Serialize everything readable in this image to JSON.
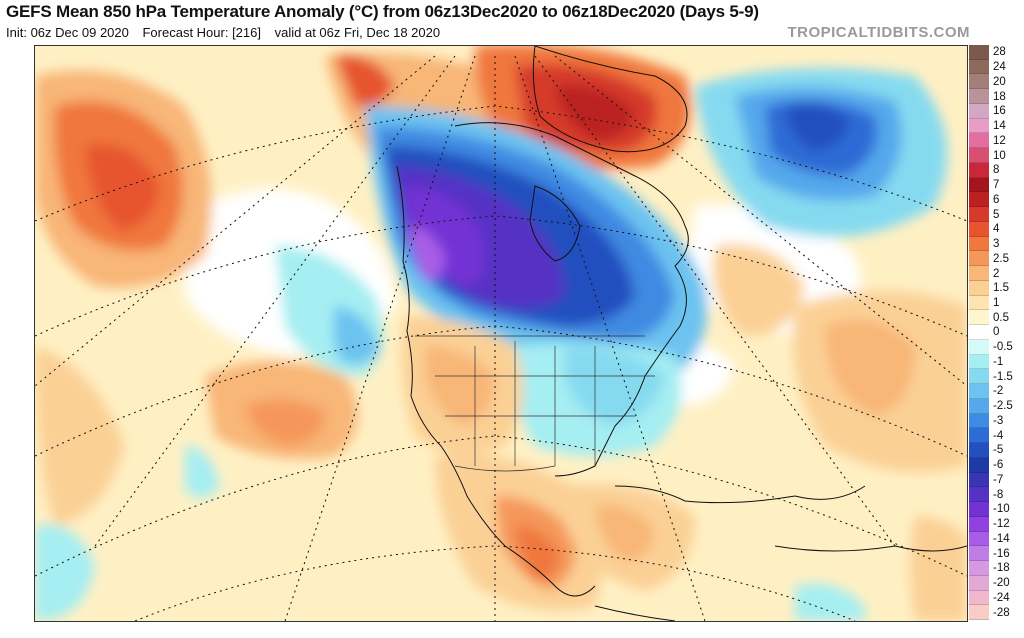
{
  "header": {
    "title": "GEFS Mean 850 hPa Temperature Anomaly (°C) from 06z13Dec2020 to 06z18Dec2020 (Days 5-9)",
    "init": "Init: 06z Dec 09 2020",
    "forecast_hour": "Forecast Hour: [216]",
    "valid": "valid at 06z Fri, Dec 18 2020",
    "brand": "TROPICALTIDBITS.COM"
  },
  "colorbar": [
    {
      "label": "28",
      "color": "#7a5a4a"
    },
    {
      "label": "24",
      "color": "#8e6a5c"
    },
    {
      "label": "20",
      "color": "#a2807a"
    },
    {
      "label": "18",
      "color": "#b8949a"
    },
    {
      "label": "16",
      "color": "#d3a7c4"
    },
    {
      "label": "14",
      "color": "#e89cc6"
    },
    {
      "label": "12",
      "color": "#e26fa0"
    },
    {
      "label": "10",
      "color": "#d94f72"
    },
    {
      "label": "8",
      "color": "#c9273a"
    },
    {
      "label": "7",
      "color": "#a3141c"
    },
    {
      "label": "6",
      "color": "#bb2121"
    },
    {
      "label": "5",
      "color": "#d63a2a"
    },
    {
      "label": "4",
      "color": "#e6552f"
    },
    {
      "label": "3",
      "color": "#f0773e"
    },
    {
      "label": "2.5",
      "color": "#f5975a"
    },
    {
      "label": "2",
      "color": "#f8b677"
    },
    {
      "label": "1.5",
      "color": "#fbd095"
    },
    {
      "label": "1",
      "color": "#fde4b0"
    },
    {
      "label": "0.5",
      "color": "#fff5cc"
    },
    {
      "label": "0",
      "color": "#ffffff"
    },
    {
      "label": "-0.5",
      "color": "#d6fafa"
    },
    {
      "label": "-1",
      "color": "#a5eef2"
    },
    {
      "label": "-1.5",
      "color": "#86daf0"
    },
    {
      "label": "-2",
      "color": "#6cc3f0"
    },
    {
      "label": "-2.5",
      "color": "#55a8ec"
    },
    {
      "label": "-3",
      "color": "#3f8ae2"
    },
    {
      "label": "-4",
      "color": "#2d6bd5"
    },
    {
      "label": "-5",
      "color": "#234fbf"
    },
    {
      "label": "-6",
      "color": "#1e3aa6"
    },
    {
      "label": "-7",
      "color": "#3a35b2"
    },
    {
      "label": "-8",
      "color": "#5432c4"
    },
    {
      "label": "-10",
      "color": "#7332d4"
    },
    {
      "label": "-12",
      "color": "#9241e0"
    },
    {
      "label": "-14",
      "color": "#a95de6"
    },
    {
      "label": "-16",
      "color": "#bf7de6"
    },
    {
      "label": "-18",
      "color": "#d599e0"
    },
    {
      "label": "-20",
      "color": "#e3a9d6"
    },
    {
      "label": "-24",
      "color": "#efb8cc"
    },
    {
      "label": "-28",
      "color": "#f7cdc4"
    }
  ],
  "map": {
    "icon": "temperature-anomaly-map"
  }
}
